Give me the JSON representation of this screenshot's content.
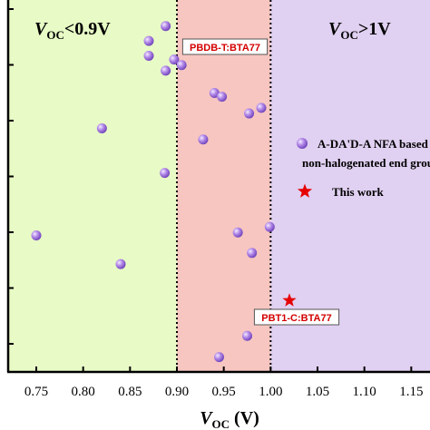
{
  "chart_data": {
    "type": "scatter",
    "xlabel_main": "V",
    "xlabel_sub": "OC",
    "xlabel_unit": " (V)",
    "xlim": [
      0.72,
      1.17
    ],
    "ylim": [
      0,
      1
    ],
    "x_ticks": [
      "0.75",
      "0.80",
      "0.85",
      "0.90",
      "0.95",
      "1.00",
      "1.05",
      "1.10",
      "1.15"
    ],
    "regions": [
      {
        "from": 0.72,
        "to": 0.9,
        "color": "#e8fbc6",
        "label_main": "V",
        "label_sub": "OC",
        "label_tail": "<0.9V"
      },
      {
        "from": 0.9,
        "to": 1.0,
        "color": "#f7c6c1",
        "label_main": "",
        "label_sub": "",
        "label_tail": ""
      },
      {
        "from": 1.0,
        "to": 1.17,
        "color": "#e0d0f1",
        "label_main": "V",
        "label_sub": "OC",
        "label_tail": ">1V"
      }
    ],
    "region_boundaries": [
      0.9,
      1.0
    ],
    "series": [
      {
        "name": "A-DA'D-A NFA based on non-halogenated end groups",
        "marker": "circle",
        "color": "#9a6fd6",
        "points": [
          {
            "x": 0.888,
            "y": 0.93
          },
          {
            "x": 0.87,
            "y": 0.89
          },
          {
            "x": 0.87,
            "y": 0.85
          },
          {
            "x": 0.897,
            "y": 0.84
          },
          {
            "x": 0.888,
            "y": 0.81
          },
          {
            "x": 0.905,
            "y": 0.825
          },
          {
            "x": 0.94,
            "y": 0.75
          },
          {
            "x": 0.948,
            "y": 0.74
          },
          {
            "x": 0.99,
            "y": 0.71
          },
          {
            "x": 0.977,
            "y": 0.695
          },
          {
            "x": 0.82,
            "y": 0.655
          },
          {
            "x": 0.928,
            "y": 0.625
          },
          {
            "x": 0.887,
            "y": 0.535
          },
          {
            "x": 0.75,
            "y": 0.367
          },
          {
            "x": 0.965,
            "y": 0.375
          },
          {
            "x": 0.999,
            "y": 0.39
          },
          {
            "x": 0.98,
            "y": 0.32
          },
          {
            "x": 0.84,
            "y": 0.29
          },
          {
            "x": 0.975,
            "y": 0.097
          },
          {
            "x": 0.945,
            "y": 0.04
          }
        ]
      },
      {
        "name": "This work",
        "marker": "star",
        "color": "#e60000",
        "points": [
          {
            "x": 0.943,
            "y": 0.876,
            "label": "PBDB-T:BTA77"
          },
          {
            "x": 1.02,
            "y": 0.192,
            "label": "PBT1-C:BTA77"
          }
        ]
      }
    ],
    "legend": {
      "placement": "right",
      "entries": [
        {
          "marker": "circle",
          "line1": "A-DA'D-A NFA based on",
          "line2": "non-halogenated end groups"
        },
        {
          "marker": "star",
          "line1": "This work",
          "line2": ""
        }
      ]
    }
  }
}
